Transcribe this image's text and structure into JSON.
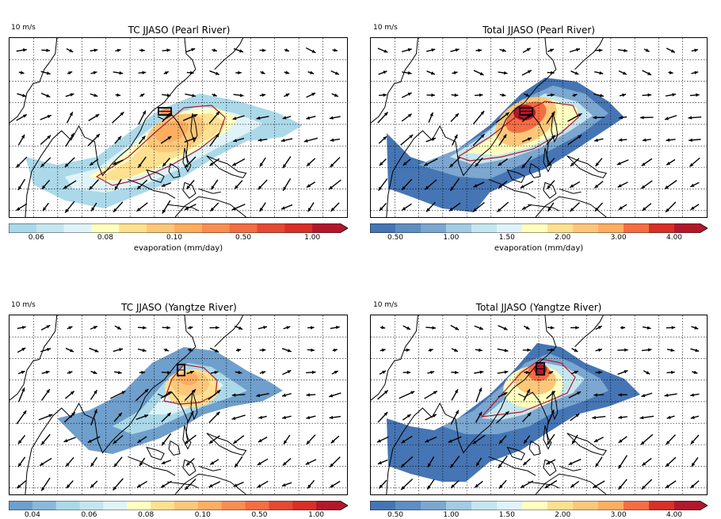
{
  "chart_data": [
    {
      "type": "heatmap",
      "title": "TC JJASO (Pearl River)",
      "vector_scale_label": "10 m/s",
      "colorbar": {
        "label": "evaporation (mm/day)",
        "ticks": [
          "0.06",
          "0.08",
          "0.10",
          "0.50",
          "1.00"
        ],
        "colors": [
          "#abd9e9",
          "#c6e6ef",
          "#e0f3f8",
          "#ffffbf",
          "#fee090",
          "#fdc77a",
          "#fdae61",
          "#f98e52",
          "#f46d43",
          "#e34a33",
          "#d73027",
          "#b2182b"
        ]
      },
      "region_box": "Pearl River"
    },
    {
      "type": "heatmap",
      "title": "Total JJASO (Pearl River)",
      "vector_scale_label": "10 m/s",
      "colorbar": {
        "label": "evaporation (mm/day)",
        "ticks": [
          "0.50",
          "1.00",
          "1.50",
          "2.00",
          "3.00",
          "4.00"
        ],
        "colors": [
          "#4575b4",
          "#5f8ec2",
          "#7ba7d0",
          "#a3cbe2",
          "#c6e6ef",
          "#e0f3f8",
          "#ffffbf",
          "#fee090",
          "#fdc77a",
          "#fdae61",
          "#f46d43",
          "#d73027",
          "#b2182b"
        ]
      },
      "region_box": "Pearl River"
    },
    {
      "type": "heatmap",
      "title": "TC JJASO (Yangtze River)",
      "vector_scale_label": "10 m/s",
      "colorbar": {
        "label": "",
        "ticks": [
          "0.04",
          "0.06",
          "0.08",
          "0.10",
          "0.50",
          "1.00"
        ],
        "colors": [
          "#6f9fcc",
          "#8ab9d9",
          "#abd9e9",
          "#c6e6ef",
          "#e0f3f8",
          "#ffffbf",
          "#fee090",
          "#fdc77a",
          "#fdae61",
          "#f98e52",
          "#f46d43",
          "#e34a33",
          "#d73027",
          "#b2182b"
        ]
      },
      "region_box": "Yangtze River"
    },
    {
      "type": "heatmap",
      "title": "Total JJASO (Yangtze River)",
      "vector_scale_label": "10 m/s",
      "colorbar": {
        "label": "",
        "ticks": [
          "0.50",
          "1.00",
          "1.50",
          "2.00",
          "3.00",
          "4.00"
        ],
        "colors": [
          "#4575b4",
          "#5f8ec2",
          "#7ba7d0",
          "#a3cbe2",
          "#c6e6ef",
          "#e0f3f8",
          "#ffffbf",
          "#fee090",
          "#fdc77a",
          "#fdae61",
          "#f46d43",
          "#d73027",
          "#b2182b"
        ]
      },
      "region_box": "Yangtze River"
    }
  ]
}
